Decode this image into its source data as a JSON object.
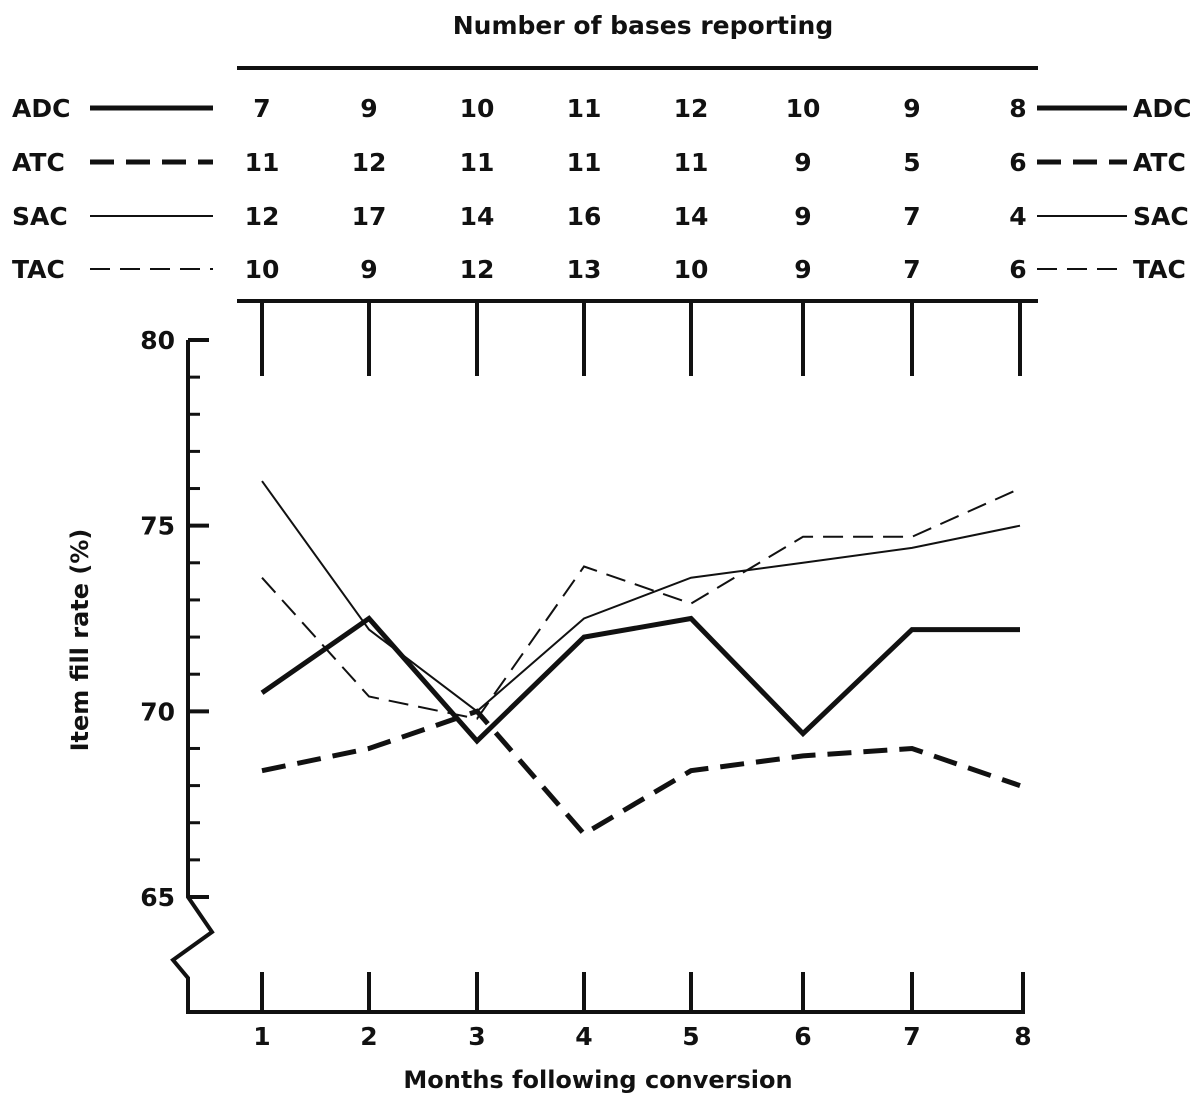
{
  "chart_data": {
    "type": "line",
    "xlabel": "Months following conversion",
    "ylabel": "Item fill rate (%)",
    "x": [
      1,
      2,
      3,
      4,
      5,
      6,
      7,
      8
    ],
    "ylim": [
      62,
      80
    ],
    "yticks": [
      65,
      70,
      75,
      80
    ],
    "y_axis_break_below": 65,
    "grid": false,
    "legend_placement": "top table (left and right margins)",
    "series": [
      {
        "name": "ADC",
        "style": "thick-solid",
        "values": [
          70.5,
          72.5,
          69.2,
          72.0,
          72.5,
          69.4,
          72.2,
          72.2
        ]
      },
      {
        "name": "ATC",
        "style": "thick-dashed",
        "values": [
          68.4,
          69.0,
          70.0,
          66.7,
          68.4,
          68.8,
          69.0,
          68.0
        ]
      },
      {
        "name": "SAC",
        "style": "thin-solid",
        "values": [
          76.2,
          72.2,
          70.0,
          72.5,
          73.6,
          74.0,
          74.4,
          75.0
        ]
      },
      {
        "name": "TAC",
        "style": "thin-dashed",
        "values": [
          73.6,
          70.4,
          69.8,
          73.9,
          72.9,
          74.7,
          74.7,
          76.0
        ]
      }
    ],
    "bases_table": {
      "title": "Number of bases reporting",
      "rows": [
        {
          "name": "ADC",
          "counts": [
            "7",
            "9",
            "10",
            "11",
            "12",
            "10",
            "9",
            "8"
          ]
        },
        {
          "name": "ATC",
          "counts": [
            "11",
            "12",
            "11",
            "11",
            "11",
            "9",
            "5",
            "6"
          ]
        },
        {
          "name": "SAC",
          "counts": [
            "12",
            "17",
            "14",
            "16",
            "14",
            "9",
            "7",
            "4"
          ]
        },
        {
          "name": "TAC",
          "counts": [
            "10",
            "9",
            "12",
            "13",
            "10",
            "9",
            "7",
            "6"
          ]
        }
      ]
    }
  }
}
